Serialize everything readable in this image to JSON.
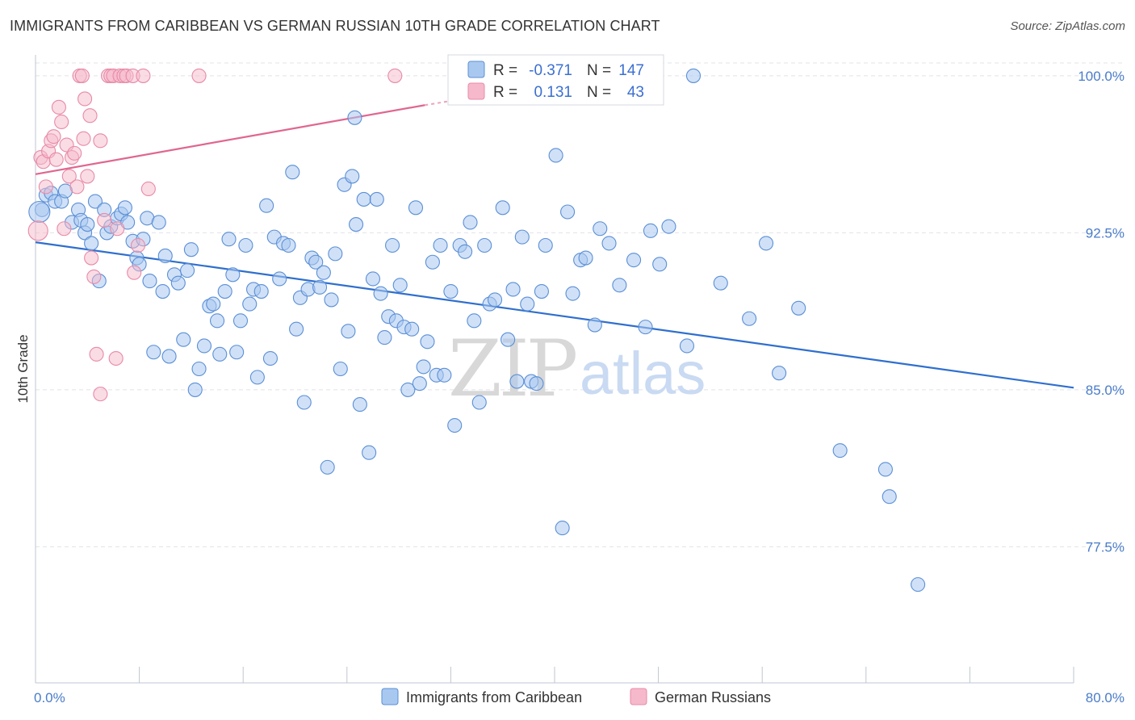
{
  "title": "IMMIGRANTS FROM CARIBBEAN VS GERMAN RUSSIAN 10TH GRADE CORRELATION CHART",
  "source": "Source: ZipAtlas.com",
  "watermark": {
    "zip": "ZIP",
    "atlas": "atlas"
  },
  "colors": {
    "blue_fill": "#a9c8f0",
    "blue_stroke": "#5b8fd6",
    "blue_line": "#2f6fce",
    "pink_fill": "#f6b9cb",
    "pink_stroke": "#e88aa7",
    "pink_line": "#e06690",
    "tick_text": "#4a7cc9",
    "grid": "#dfe3ea"
  },
  "legend": {
    "rows": [
      {
        "r_label": "R =",
        "r_value": "-0.371",
        "n_label": "N =",
        "n_value": "147"
      },
      {
        "r_label": "R =",
        "r_value": "0.131",
        "n_label": "N =",
        "n_value": "43"
      }
    ],
    "bottom": [
      "Immigrants from Caribbean",
      "German Russians"
    ]
  },
  "chart_data": {
    "type": "scatter",
    "xlabel": "",
    "ylabel": "10th Grade",
    "xlim": [
      0,
      80
    ],
    "ylim": [
      71.0,
      101.0
    ],
    "x_tick_labels": [
      "0.0%",
      "80.0%"
    ],
    "y_ticks": [
      77.5,
      85.0,
      92.5,
      100.0
    ],
    "y_tick_labels": [
      "77.5%",
      "85.0%",
      "92.5%",
      "100.0%"
    ],
    "grid": true,
    "legend_placement": "top-center",
    "series": [
      {
        "name": "Immigrants from Caribbean",
        "r": -0.371,
        "n": 147,
        "trend": {
          "x": [
            0,
            80
          ],
          "y": [
            92.05,
            85.1
          ]
        },
        "points": [
          [
            0.5,
            93.6
          ],
          [
            0.8,
            94.3
          ],
          [
            1.2,
            94.4
          ],
          [
            1.5,
            94.0
          ],
          [
            2.0,
            94.0
          ],
          [
            2.3,
            94.5
          ],
          [
            2.8,
            93.0
          ],
          [
            3.3,
            93.6
          ],
          [
            3.5,
            93.1
          ],
          [
            3.8,
            92.5
          ],
          [
            4.0,
            92.9
          ],
          [
            4.3,
            92.0
          ],
          [
            4.6,
            94.0
          ],
          [
            4.9,
            90.2
          ],
          [
            5.3,
            93.6
          ],
          [
            5.5,
            92.5
          ],
          [
            5.8,
            92.8
          ],
          [
            6.3,
            93.2
          ],
          [
            6.6,
            93.4
          ],
          [
            6.9,
            93.7
          ],
          [
            7.1,
            93.0
          ],
          [
            7.5,
            92.1
          ],
          [
            7.8,
            91.3
          ],
          [
            8.0,
            91.0
          ],
          [
            8.3,
            92.2
          ],
          [
            8.6,
            93.2
          ],
          [
            8.8,
            90.2
          ],
          [
            9.1,
            86.8
          ],
          [
            9.5,
            93.0
          ],
          [
            9.8,
            89.7
          ],
          [
            10.0,
            91.4
          ],
          [
            10.3,
            86.6
          ],
          [
            10.7,
            90.5
          ],
          [
            11.0,
            90.1
          ],
          [
            11.4,
            87.4
          ],
          [
            11.7,
            90.7
          ],
          [
            12.0,
            91.7
          ],
          [
            12.3,
            85.0
          ],
          [
            12.6,
            86.0
          ],
          [
            13.0,
            87.1
          ],
          [
            13.4,
            89.0
          ],
          [
            13.7,
            89.1
          ],
          [
            14.0,
            88.3
          ],
          [
            14.2,
            86.7
          ],
          [
            14.6,
            89.7
          ],
          [
            14.9,
            92.2
          ],
          [
            15.2,
            90.5
          ],
          [
            15.5,
            86.8
          ],
          [
            15.8,
            88.3
          ],
          [
            16.2,
            91.9
          ],
          [
            16.5,
            89.1
          ],
          [
            16.8,
            89.8
          ],
          [
            17.1,
            85.6
          ],
          [
            17.4,
            89.7
          ],
          [
            17.8,
            93.8
          ],
          [
            18.1,
            86.5
          ],
          [
            18.4,
            92.3
          ],
          [
            18.8,
            90.3
          ],
          [
            19.1,
            92.0
          ],
          [
            19.5,
            91.9
          ],
          [
            19.8,
            95.4
          ],
          [
            20.1,
            87.9
          ],
          [
            20.4,
            89.4
          ],
          [
            20.7,
            84.4
          ],
          [
            21.0,
            89.8
          ],
          [
            21.3,
            91.3
          ],
          [
            21.6,
            91.1
          ],
          [
            21.9,
            89.9
          ],
          [
            22.2,
            90.6
          ],
          [
            22.5,
            81.3
          ],
          [
            22.8,
            89.3
          ],
          [
            23.1,
            91.5
          ],
          [
            23.5,
            86.0
          ],
          [
            23.8,
            94.8
          ],
          [
            24.1,
            87.8
          ],
          [
            24.4,
            95.2
          ],
          [
            24.7,
            92.9
          ],
          [
            25.0,
            84.3
          ],
          [
            25.3,
            94.1
          ],
          [
            25.7,
            82.0
          ],
          [
            26.0,
            90.3
          ],
          [
            26.3,
            94.1
          ],
          [
            26.6,
            89.6
          ],
          [
            26.9,
            87.5
          ],
          [
            27.2,
            88.5
          ],
          [
            27.5,
            91.9
          ],
          [
            27.8,
            88.3
          ],
          [
            28.1,
            90.0
          ],
          [
            28.4,
            88.0
          ],
          [
            28.7,
            85.0
          ],
          [
            29.0,
            87.9
          ],
          [
            29.3,
            93.7
          ],
          [
            29.6,
            85.3
          ],
          [
            29.9,
            86.1
          ],
          [
            30.2,
            87.3
          ],
          [
            30.6,
            91.1
          ],
          [
            30.9,
            85.7
          ],
          [
            31.2,
            91.9
          ],
          [
            31.5,
            85.7
          ],
          [
            32.0,
            89.7
          ],
          [
            32.3,
            83.3
          ],
          [
            32.7,
            91.9
          ],
          [
            33.1,
            91.6
          ],
          [
            33.5,
            93.0
          ],
          [
            33.8,
            88.3
          ],
          [
            34.2,
            84.4
          ],
          [
            34.6,
            91.9
          ],
          [
            35.0,
            89.1
          ],
          [
            35.4,
            89.3
          ],
          [
            36.0,
            93.7
          ],
          [
            36.4,
            87.4
          ],
          [
            36.8,
            89.8
          ],
          [
            37.1,
            85.4
          ],
          [
            37.5,
            92.3
          ],
          [
            37.9,
            89.1
          ],
          [
            38.2,
            85.4
          ],
          [
            38.6,
            85.3
          ],
          [
            39.0,
            89.7
          ],
          [
            39.3,
            91.9
          ],
          [
            40.1,
            96.2
          ],
          [
            40.6,
            78.4
          ],
          [
            41.0,
            93.5
          ],
          [
            41.4,
            89.6
          ],
          [
            42.0,
            91.2
          ],
          [
            42.4,
            91.3
          ],
          [
            43.1,
            88.1
          ],
          [
            43.5,
            92.7
          ],
          [
            44.2,
            92.0
          ],
          [
            45.0,
            90.0
          ],
          [
            46.1,
            91.2
          ],
          [
            47.0,
            88.0
          ],
          [
            47.4,
            92.6
          ],
          [
            48.1,
            91.0
          ],
          [
            48.8,
            92.8
          ],
          [
            50.2,
            87.1
          ],
          [
            50.7,
            100.0
          ],
          [
            52.8,
            90.1
          ],
          [
            55.0,
            88.4
          ],
          [
            56.3,
            92.0
          ],
          [
            57.3,
            85.8
          ],
          [
            58.8,
            88.9
          ],
          [
            62.0,
            82.1
          ],
          [
            65.5,
            81.2
          ],
          [
            65.8,
            79.9
          ],
          [
            68.0,
            75.7
          ],
          [
            24.6,
            98.0
          ],
          [
            0.3,
            93.5
          ]
        ]
      },
      {
        "name": "German Russians",
        "r": 0.131,
        "n": 43,
        "trend": {
          "x": [
            0,
            30
          ],
          "y": [
            95.3,
            98.6
          ]
        },
        "trend_dashed": {
          "x": [
            30,
            32
          ],
          "y": [
            98.6,
            98.8
          ]
        },
        "points": [
          [
            0.2,
            92.6
          ],
          [
            0.4,
            96.1
          ],
          [
            0.6,
            95.9
          ],
          [
            0.8,
            94.7
          ],
          [
            1.0,
            96.4
          ],
          [
            1.2,
            96.9
          ],
          [
            1.4,
            97.1
          ],
          [
            1.6,
            96.0
          ],
          [
            1.8,
            98.5
          ],
          [
            2.0,
            97.8
          ],
          [
            2.2,
            92.7
          ],
          [
            2.4,
            96.7
          ],
          [
            2.6,
            95.2
          ],
          [
            2.8,
            96.1
          ],
          [
            3.0,
            96.3
          ],
          [
            3.2,
            94.7
          ],
          [
            3.4,
            100.0
          ],
          [
            3.6,
            100.0
          ],
          [
            3.7,
            97.0
          ],
          [
            3.8,
            98.9
          ],
          [
            4.0,
            95.2
          ],
          [
            4.2,
            98.1
          ],
          [
            4.3,
            91.3
          ],
          [
            4.5,
            90.4
          ],
          [
            4.7,
            86.7
          ],
          [
            5.0,
            96.9
          ],
          [
            5.0,
            84.8
          ],
          [
            5.3,
            93.1
          ],
          [
            5.6,
            100.0
          ],
          [
            5.8,
            100.0
          ],
          [
            6.0,
            100.0
          ],
          [
            6.2,
            86.5
          ],
          [
            6.3,
            92.7
          ],
          [
            6.5,
            100.0
          ],
          [
            6.8,
            100.0
          ],
          [
            7.0,
            100.0
          ],
          [
            7.5,
            100.0
          ],
          [
            7.6,
            90.6
          ],
          [
            7.9,
            91.9
          ],
          [
            8.3,
            100.0
          ],
          [
            8.7,
            94.6
          ],
          [
            12.6,
            100.0
          ],
          [
            27.7,
            100.0
          ]
        ]
      }
    ]
  }
}
